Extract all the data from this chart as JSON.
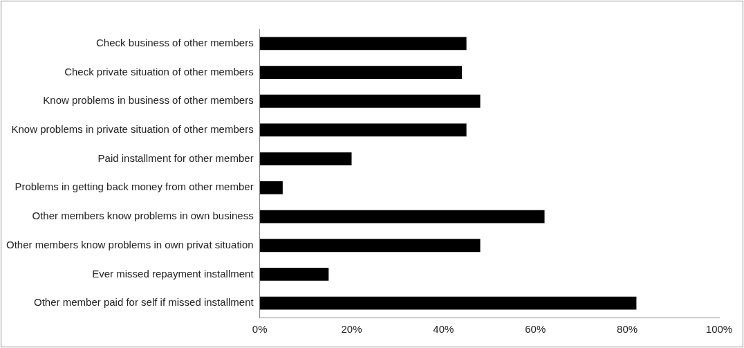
{
  "chart_data": {
    "type": "bar",
    "orientation": "horizontal",
    "categories": [
      "Check business of other members",
      "Check private situation of other members",
      "Know problems in business of other members",
      "Know problems in private situation of other members",
      "Paid installment for other member",
      "Problems in getting back money from other member",
      "Other members know problems in own business",
      "Other members know problems in own privat situation",
      "Ever missed repayment installment",
      "Other member paid for self if missed installment"
    ],
    "values": [
      45,
      44,
      48,
      45,
      20,
      5,
      62,
      48,
      15,
      82
    ],
    "color": "#000000",
    "xlim": [
      0,
      100
    ],
    "xticks": [
      {
        "value": 0,
        "label": "0%"
      },
      {
        "value": 20,
        "label": "20%"
      },
      {
        "value": 40,
        "label": "40%"
      },
      {
        "value": 60,
        "label": "60%"
      },
      {
        "value": 80,
        "label": "80%"
      },
      {
        "value": 100,
        "label": "100%"
      }
    ],
    "grid": false,
    "legend": false
  }
}
